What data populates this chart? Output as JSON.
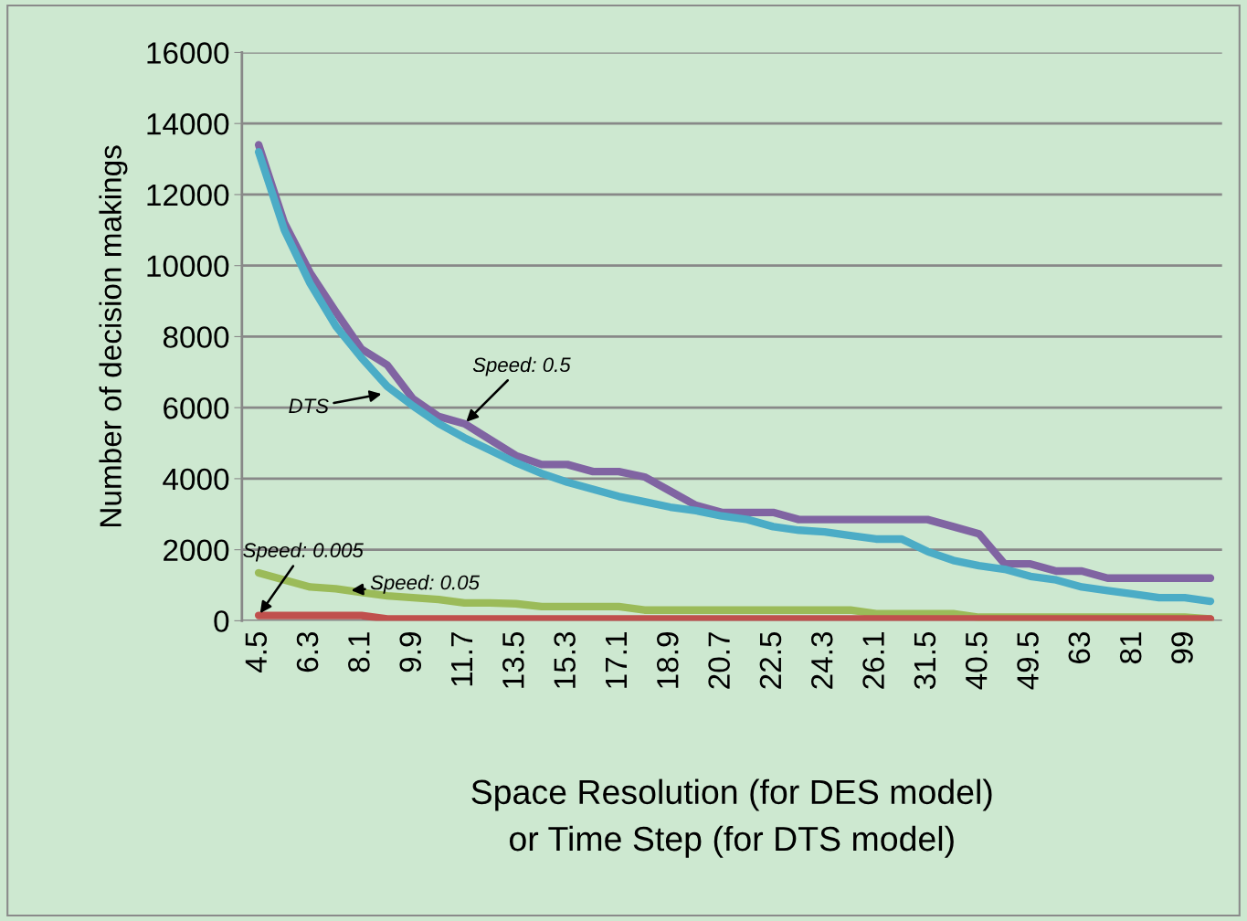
{
  "chart_data": {
    "type": "line",
    "xlabel": "Space Resolution (for DES model)\nor Time Step (for DTS model)",
    "ylabel": "Number of decision makings",
    "categories": [
      "4.5",
      null,
      "6.3",
      null,
      "8.1",
      null,
      "9.9",
      null,
      "11.7",
      null,
      "13.5",
      null,
      "15.3",
      null,
      "17.1",
      null,
      "18.9",
      null,
      "20.7",
      null,
      "22.5",
      null,
      "24.3",
      null,
      "26.1",
      null,
      "31.5",
      null,
      "40.5",
      null,
      "49.5",
      null,
      "63",
      null,
      "81",
      null,
      "99",
      null
    ],
    "series": [
      {
        "color": "#8064a2",
        "values": [
          13400,
          11200,
          9800,
          8700,
          7650,
          7200,
          6250,
          5750,
          5550,
          5100,
          4650,
          4400,
          4400,
          4200,
          4200,
          4050,
          3650,
          3250,
          3050,
          3050,
          3050,
          2850,
          2850,
          2850,
          2850,
          2850,
          2850,
          2650,
          2450,
          1600,
          1600,
          1400,
          1400,
          1200,
          1200,
          1200,
          1200,
          1200
        ]
      },
      {
        "color": "#4bacc6",
        "values": [
          13200,
          11000,
          9500,
          8300,
          7400,
          6600,
          6050,
          5550,
          5150,
          4800,
          4450,
          4150,
          3900,
          3700,
          3500,
          3350,
          3200,
          3100,
          2950,
          2850,
          2650,
          2550,
          2500,
          2400,
          2300,
          2300,
          1950,
          1700,
          1550,
          1450,
          1250,
          1150,
          950,
          850,
          750,
          650,
          650,
          550
        ]
      },
      {
        "color": "#9bbb59",
        "values": [
          1350,
          1150,
          950,
          900,
          800,
          700,
          650,
          600,
          500,
          500,
          480,
          400,
          400,
          400,
          400,
          300,
          300,
          300,
          300,
          300,
          300,
          300,
          300,
          300,
          200,
          200,
          200,
          200,
          100,
          100,
          100,
          100,
          100,
          100,
          100,
          100,
          100,
          50
        ]
      },
      {
        "color": "#c0504d",
        "values": [
          150,
          150,
          150,
          150,
          150,
          50,
          50,
          50,
          50,
          50,
          50,
          50,
          50,
          50,
          50,
          50,
          50,
          50,
          50,
          50,
          50,
          50,
          50,
          50,
          50,
          50,
          50,
          50,
          50,
          50,
          50,
          50,
          50,
          50,
          50,
          50,
          50,
          50
        ]
      }
    ],
    "ylim": [
      0,
      16000
    ],
    "yticks": [
      0,
      2000,
      4000,
      6000,
      8000,
      10000,
      12000,
      14000,
      16000
    ],
    "grid": "y",
    "annotations": [
      "DTS",
      {
        "text": "Speed: 0.5",
        "x": "11.7",
        "y": 5550
      },
      {
        "text": "Speed: 0.005",
        "x": "4.5",
        "y": 150
      },
      {
        "text": "Speed: 0.05",
        "y": 850
      }
    ]
  }
}
